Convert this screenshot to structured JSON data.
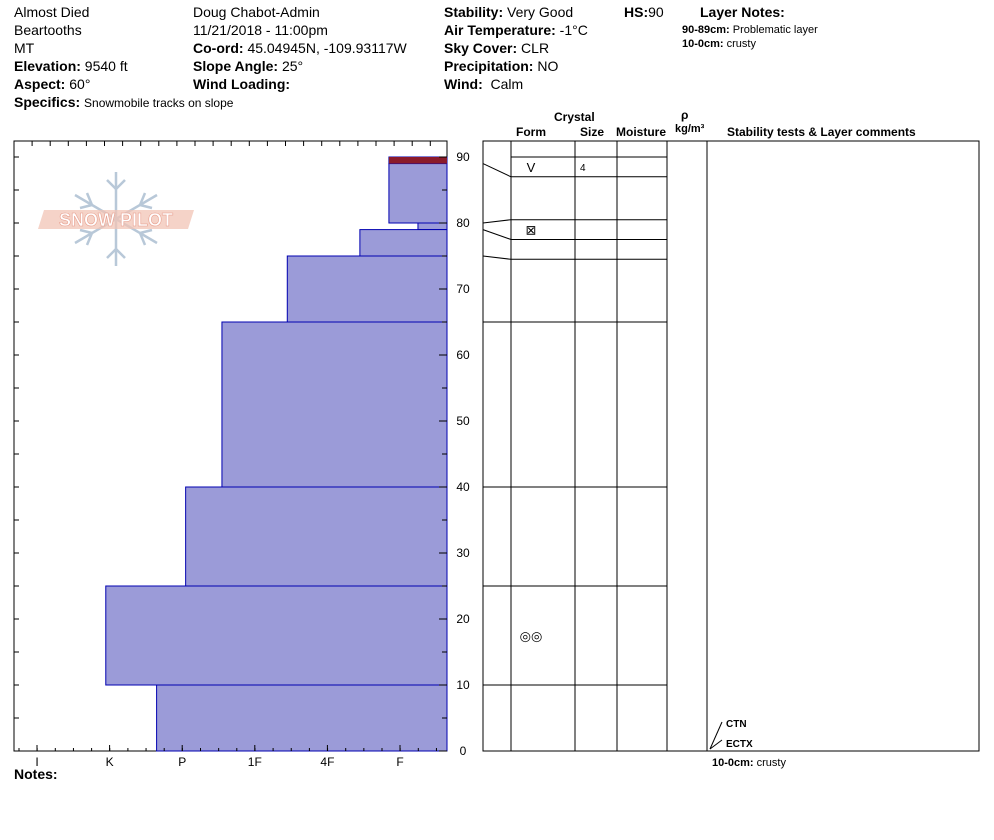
{
  "header": {
    "name": "Almost Died",
    "range": "Beartooths",
    "state": "MT",
    "elevation_label": "Elevation:",
    "elevation": "9540 ft",
    "aspect_label": "Aspect:",
    "aspect": "60°",
    "specifics_label": "Specifics:",
    "specifics": "Snowmobile tracks on slope",
    "observer": "Doug Chabot-Admin",
    "datetime": "11/21/2018 - 11:00pm",
    "coord_label": "Co-ord:",
    "coord": "45.04945N, -109.93117W",
    "slope_label": "Slope Angle:",
    "slope": "25°",
    "wind_loading_label": "Wind Loading:",
    "wind_loading": "",
    "stability_label": "Stability:",
    "stability": "Very Good",
    "air_temp_label": "Air Temperature:",
    "air_temp": "-1°C",
    "sky_label": "Sky Cover:",
    "sky": "CLR",
    "precip_label": "Precipitation:",
    "precip": "NO",
    "wind_label": "Wind:",
    "wind": "Calm",
    "hs_label": "HS:",
    "hs": "90",
    "layer_notes_title": "Layer Notes:",
    "layer_notes": [
      {
        "range": "90-89cm:",
        "text": "Problematic layer"
      },
      {
        "range": "10-0cm:",
        "text": "crusty"
      }
    ]
  },
  "logo": {
    "text": "SNOW PILOT",
    "color": "#e8a090"
  },
  "columns": {
    "crystal": "Crystal",
    "form": "Form",
    "size": "Size",
    "moisture": "Moisture",
    "rho": "ρ",
    "density_unit": "kg/m³",
    "stability_comments": "Stability tests & Layer comments"
  },
  "notes_label": "Notes:",
  "footer_note": {
    "range": "10-0cm:",
    "text": "crusty"
  },
  "tests": [
    {
      "label": "CTN",
      "depth": 0
    },
    {
      "label": "ECTX",
      "depth": 0
    }
  ],
  "colors": {
    "bar_fill": "#9b9bd8",
    "bar_stroke": "#0000b0",
    "problem_layer": "#8b1a2a"
  },
  "chart_data": {
    "type": "bar",
    "title": "",
    "xlabel": "",
    "ylabel": "",
    "hardness_scale": [
      "I",
      "K",
      "P",
      "1F",
      "4F",
      "F"
    ],
    "y_ticks": [
      0,
      10,
      20,
      30,
      40,
      50,
      60,
      70,
      80,
      90
    ],
    "ylim": [
      0,
      90
    ],
    "layers": [
      {
        "top": 90,
        "bottom": 89,
        "hardness": 0.8
      },
      {
        "top": 89,
        "bottom": 80,
        "hardness": 0.8
      },
      {
        "top": 80,
        "bottom": 79,
        "hardness": 0.4
      },
      {
        "top": 79,
        "bottom": 75,
        "hardness": 1.2
      },
      {
        "top": 75,
        "bottom": 65,
        "hardness": 2.2
      },
      {
        "top": 65,
        "bottom": 40,
        "hardness": 3.1
      },
      {
        "top": 40,
        "bottom": 25,
        "hardness": 3.6
      },
      {
        "top": 25,
        "bottom": 10,
        "hardness": 4.7
      },
      {
        "top": 10,
        "bottom": 0,
        "hardness": 4.0
      }
    ],
    "grain_boundaries": [
      90,
      87,
      80.5,
      77.5,
      74.5,
      65,
      40,
      25,
      10
    ],
    "crystals": [
      {
        "depth": 88.5,
        "form": "V",
        "size": "4"
      },
      {
        "depth": 79,
        "form": "⊠",
        "size": ""
      },
      {
        "depth": 17.5,
        "form": "◎◎",
        "size": ""
      }
    ]
  }
}
